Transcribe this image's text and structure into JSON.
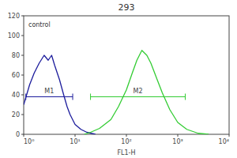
{
  "chart_data": {
    "type": "line",
    "title": "293",
    "x_label": "FL1-H",
    "log": "x",
    "xlim": [
      1,
      10000
    ],
    "xticks": [
      {
        "value": 1,
        "label": "10⁰"
      },
      {
        "value": 10,
        "label": "10¹"
      },
      {
        "value": 100,
        "label": "10²"
      },
      {
        "value": 1000,
        "label": "10³"
      },
      {
        "value": 10000,
        "label": "10⁴"
      }
    ],
    "ylim": [
      0,
      120
    ],
    "yticks": [
      0,
      20,
      40,
      60,
      80,
      100,
      120
    ],
    "annotations": [
      "control"
    ],
    "series": [
      {
        "color": "#1c1c9c",
        "x": [
          1,
          1.3,
          1.6,
          2,
          2.5,
          3,
          3.5,
          4,
          5,
          6,
          7,
          8,
          10,
          13,
          17,
          25
        ],
        "values": [
          30,
          50,
          62,
          72,
          80,
          75,
          80,
          70,
          55,
          40,
          28,
          20,
          10,
          5,
          2,
          0
        ]
      },
      {
        "color": "#33cc33",
        "x": [
          15,
          20,
          30,
          50,
          70,
          100,
          130,
          160,
          200,
          250,
          300,
          400,
          500,
          700,
          1000,
          1500,
          2500,
          4000
        ],
        "values": [
          0,
          2,
          6,
          15,
          28,
          45,
          62,
          75,
          85,
          80,
          72,
          55,
          42,
          25,
          12,
          5,
          1,
          0
        ]
      }
    ],
    "gates": [
      {
        "label": "M1",
        "range": [
          1.1,
          9
        ],
        "y": 38
      },
      {
        "label": "M2",
        "range": [
          20,
          1400
        ],
        "y": 38
      }
    ]
  }
}
